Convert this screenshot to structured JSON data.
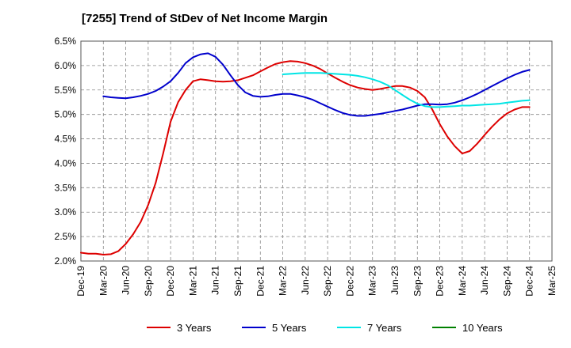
{
  "chart_data": {
    "type": "line",
    "title": "[7255]  Trend of StDev of Net Income Margin",
    "xlabel": "",
    "ylabel": "",
    "y_unit": "%",
    "ylim": [
      2.0,
      6.5
    ],
    "yticks": [
      2.0,
      2.5,
      3.0,
      3.5,
      4.0,
      4.5,
      5.0,
      5.5,
      6.0,
      6.5
    ],
    "ytick_labels": [
      "2.0%",
      "2.5%",
      "3.0%",
      "3.5%",
      "4.0%",
      "4.5%",
      "5.0%",
      "5.5%",
      "6.0%",
      "6.5%"
    ],
    "xlim": [
      "2019-12",
      "2025-03"
    ],
    "xtick_labels": [
      "Dec-19",
      "Mar-20",
      "Jun-20",
      "Sep-20",
      "Dec-20",
      "Mar-21",
      "Jun-21",
      "Sep-21",
      "Dec-21",
      "Mar-22",
      "Jun-22",
      "Sep-22",
      "Dec-22",
      "Mar-23",
      "Jun-23",
      "Sep-23",
      "Dec-23",
      "Mar-24",
      "Jun-24",
      "Sep-24",
      "Dec-24",
      "Mar-25"
    ],
    "grid": "dashed, both axes",
    "legend_position": "bottom",
    "series": [
      {
        "name": "3 Years",
        "color": "#dd0000",
        "x": [
          "2019-12",
          "2020-01",
          "2020-02",
          "2020-03",
          "2020-04",
          "2020-05",
          "2020-06",
          "2020-07",
          "2020-08",
          "2020-09",
          "2020-10",
          "2020-11",
          "2020-12",
          "2021-01",
          "2021-02",
          "2021-03",
          "2021-04",
          "2021-05",
          "2021-06",
          "2021-07",
          "2021-08",
          "2021-09",
          "2021-10",
          "2021-11",
          "2021-12",
          "2022-01",
          "2022-02",
          "2022-03",
          "2022-04",
          "2022-05",
          "2022-06",
          "2022-07",
          "2022-08",
          "2022-09",
          "2022-10",
          "2022-11",
          "2022-12",
          "2023-01",
          "2023-02",
          "2023-03",
          "2023-04",
          "2023-05",
          "2023-06",
          "2023-07",
          "2023-08",
          "2023-09",
          "2023-10",
          "2023-11",
          "2023-12",
          "2024-01",
          "2024-02",
          "2024-03",
          "2024-04",
          "2024-05",
          "2024-06",
          "2024-07",
          "2024-08",
          "2024-09",
          "2024-10",
          "2024-11",
          "2024-12"
        ],
        "values": [
          2.17,
          2.15,
          2.15,
          2.13,
          2.14,
          2.2,
          2.35,
          2.55,
          2.8,
          3.15,
          3.6,
          4.2,
          4.85,
          5.25,
          5.5,
          5.68,
          5.72,
          5.7,
          5.68,
          5.67,
          5.68,
          5.7,
          5.75,
          5.8,
          5.88,
          5.96,
          6.03,
          6.07,
          6.09,
          6.08,
          6.05,
          6.0,
          5.93,
          5.84,
          5.75,
          5.67,
          5.6,
          5.55,
          5.52,
          5.5,
          5.52,
          5.55,
          5.58,
          5.58,
          5.55,
          5.48,
          5.35,
          5.1,
          4.8,
          4.55,
          4.35,
          4.2,
          4.25,
          4.4,
          4.58,
          4.75,
          4.9,
          5.02,
          5.1,
          5.15,
          5.15
        ]
      },
      {
        "name": "5 Years",
        "color": "#0000cc",
        "x": [
          "2020-03",
          "2020-04",
          "2020-05",
          "2020-06",
          "2020-07",
          "2020-08",
          "2020-09",
          "2020-10",
          "2020-11",
          "2020-12",
          "2021-01",
          "2021-02",
          "2021-03",
          "2021-04",
          "2021-05",
          "2021-06",
          "2021-07",
          "2021-08",
          "2021-09",
          "2021-10",
          "2021-11",
          "2021-12",
          "2022-01",
          "2022-02",
          "2022-03",
          "2022-04",
          "2022-05",
          "2022-06",
          "2022-07",
          "2022-08",
          "2022-09",
          "2022-10",
          "2022-11",
          "2022-12",
          "2023-01",
          "2023-02",
          "2023-03",
          "2023-04",
          "2023-05",
          "2023-06",
          "2023-07",
          "2023-08",
          "2023-09",
          "2023-10",
          "2023-11",
          "2023-12",
          "2024-01",
          "2024-02",
          "2024-03",
          "2024-04",
          "2024-05",
          "2024-06",
          "2024-07",
          "2024-08",
          "2024-09",
          "2024-10",
          "2024-11",
          "2024-12"
        ],
        "values": [
          5.37,
          5.35,
          5.34,
          5.33,
          5.35,
          5.38,
          5.42,
          5.48,
          5.57,
          5.68,
          5.85,
          6.05,
          6.17,
          6.23,
          6.25,
          6.18,
          6.02,
          5.8,
          5.6,
          5.45,
          5.38,
          5.36,
          5.37,
          5.4,
          5.42,
          5.42,
          5.39,
          5.35,
          5.3,
          5.23,
          5.16,
          5.09,
          5.03,
          4.99,
          4.97,
          4.97,
          4.99,
          5.01,
          5.04,
          5.07,
          5.1,
          5.14,
          5.18,
          5.21,
          5.21,
          5.2,
          5.21,
          5.24,
          5.29,
          5.35,
          5.42,
          5.5,
          5.58,
          5.66,
          5.74,
          5.81,
          5.87,
          5.91
        ]
      },
      {
        "name": "7 Years",
        "color": "#00e5e5",
        "x": [
          "2022-03",
          "2022-04",
          "2022-05",
          "2022-06",
          "2022-07",
          "2022-08",
          "2022-09",
          "2022-10",
          "2022-11",
          "2022-12",
          "2023-01",
          "2023-02",
          "2023-03",
          "2023-04",
          "2023-05",
          "2023-06",
          "2023-07",
          "2023-08",
          "2023-09",
          "2023-10",
          "2023-11",
          "2023-12",
          "2024-01",
          "2024-02",
          "2024-03",
          "2024-04",
          "2024-05",
          "2024-06",
          "2024-07",
          "2024-08",
          "2024-09",
          "2024-10",
          "2024-11",
          "2024-12"
        ],
        "values": [
          5.82,
          5.83,
          5.84,
          5.85,
          5.85,
          5.85,
          5.84,
          5.83,
          5.82,
          5.81,
          5.79,
          5.76,
          5.72,
          5.67,
          5.6,
          5.5,
          5.4,
          5.3,
          5.22,
          5.17,
          5.15,
          5.15,
          5.16,
          5.17,
          5.18,
          5.18,
          5.19,
          5.2,
          5.21,
          5.22,
          5.24,
          5.26,
          5.28,
          5.29
        ]
      },
      {
        "name": "10 Years",
        "color": "#008000",
        "x": [],
        "values": []
      }
    ]
  }
}
